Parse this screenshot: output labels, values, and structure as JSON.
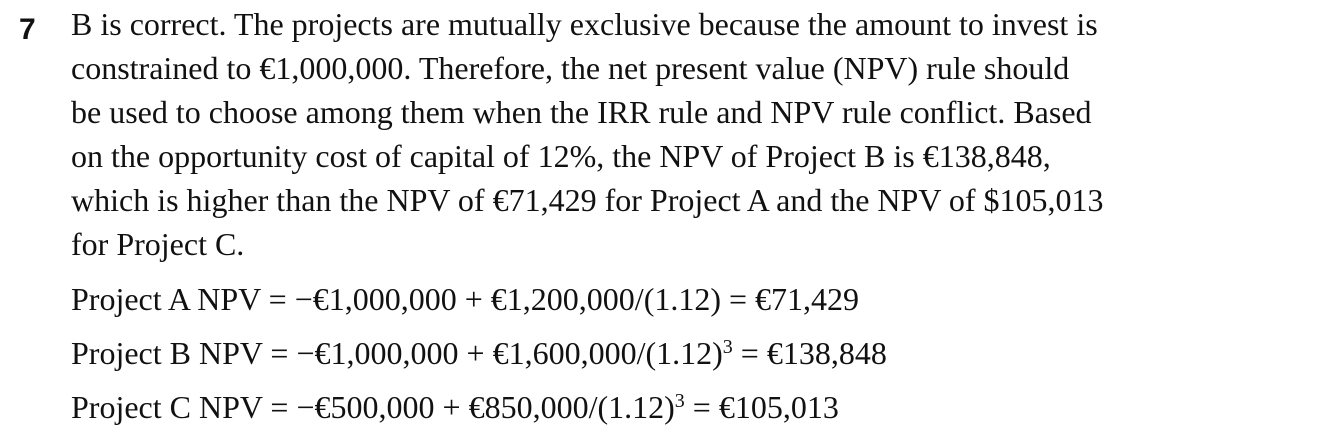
{
  "question": {
    "number": "7",
    "explanation_lines": [
      "B is correct. The projects are mutually exclusive because the amount to invest is",
      "constrained to €1,000,000. Therefore, the net present value (NPV) rule should",
      "be used to choose among them when the IRR rule and NPV rule conflict. Based",
      "on the opportunity cost of capital of 12%, the NPV of Project B is €138,848,",
      "which is higher than the NPV of €71,429 for Project A and the NPV of $105,013",
      "for Project C."
    ],
    "calculations": [
      {
        "label": "Project A NPV = ",
        "expression": "−€1,000,000 + €1,200,000/(1.12)",
        "exponent": "",
        "result": " = €71,429"
      },
      {
        "label": "Project B NPV = ",
        "expression": "−€1,000,000 + €1,600,000/(1.12)",
        "exponent": "3",
        "result": " = €138,848"
      },
      {
        "label": "Project C NPV = ",
        "expression": "−€500,000 + €850,000/(1.12)",
        "exponent": "3",
        "result": " = €105,013"
      }
    ]
  }
}
